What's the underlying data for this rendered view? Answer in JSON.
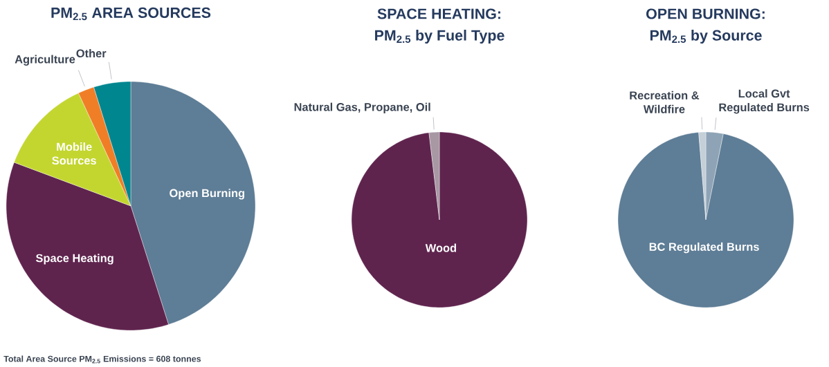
{
  "chart_data": [
    {
      "type": "pie",
      "title": "PM$_{2.5}$ AREA SOURCES",
      "categories": [
        "Open Burning",
        "Space Heating",
        "Mobile Sources",
        "Agriculture",
        "Other"
      ],
      "values": [
        45.1,
        35.6,
        12.4,
        2.1,
        4.8
      ],
      "colors": [
        "#5e7d96",
        "#5f244e",
        "#c3d630",
        "#f07e26",
        "#00868f"
      ],
      "annotations": [
        "Total Area Source PM$_{2.5}$ Emissions = 608 tonnes"
      ]
    },
    {
      "type": "pie",
      "title": "SPACE HEATING:",
      "subtitle": "PM$_{2.5}$ by Fuel Type",
      "categories": [
        "Wood",
        "Natural Gas, Propane, Oil"
      ],
      "values": [
        98.1,
        1.9
      ],
      "colors": [
        "#5f244e",
        "#a898a4"
      ]
    },
    {
      "type": "pie",
      "title": "OPEN BURNING:",
      "subtitle": "PM$_{2.5}$ by Source",
      "categories": [
        "Local Gvt Regulated Burns",
        "BC Regulated Burns",
        "Recreation & Wildfire"
      ],
      "values": [
        3.2,
        95.5,
        1.3
      ],
      "colors": [
        "#8ea4b6",
        "#5e7d96",
        "#c4cfd8"
      ]
    }
  ]
}
